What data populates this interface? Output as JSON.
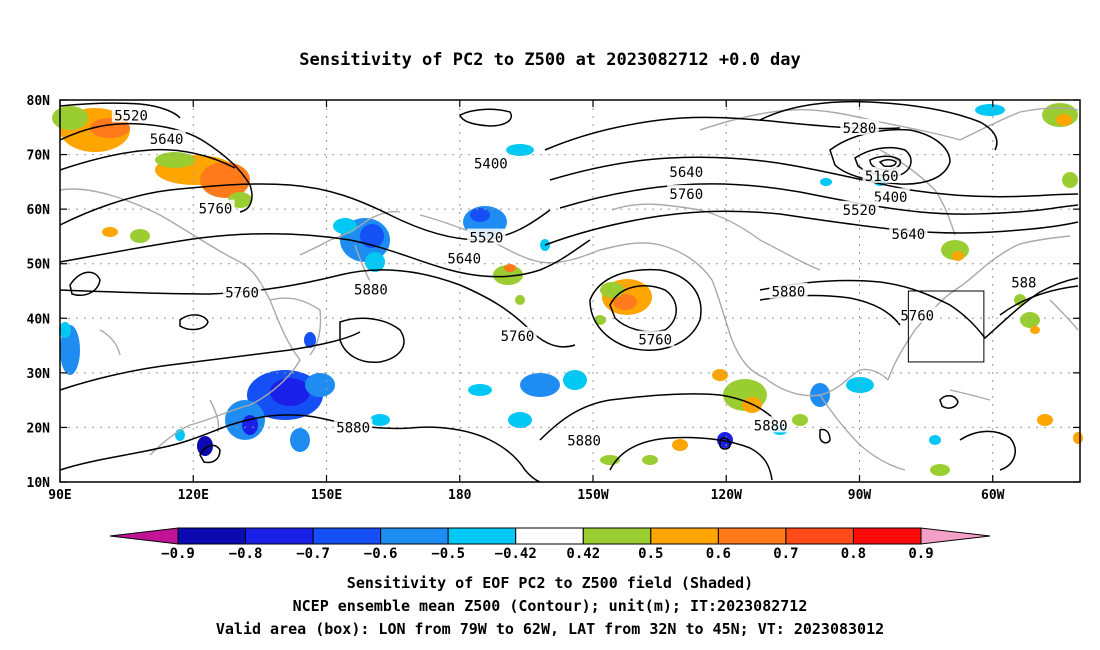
{
  "title": "Sensitivity of PC2 to Z500 at 2023082712 +0.0 day",
  "lat_labels": [
    "80N",
    "70N",
    "60N",
    "50N",
    "40N",
    "30N",
    "20N",
    "10N"
  ],
  "lon_labels": [
    "90E",
    "120E",
    "150E",
    "180",
    "150W",
    "120W",
    "90W",
    "60W"
  ],
  "contour_labels": [
    {
      "text": "5520",
      "lon": 106,
      "lat": 77
    },
    {
      "text": "5640",
      "lon": 114,
      "lat": 72.7
    },
    {
      "text": "5760",
      "lon": 125,
      "lat": 59.9
    },
    {
      "text": "5400",
      "lon": 187,
      "lat": 68.2
    },
    {
      "text": "5640",
      "lon": 231,
      "lat": 66.6
    },
    {
      "text": "5760",
      "lon": 231,
      "lat": 62.6
    },
    {
      "text": "5280",
      "lon": 270,
      "lat": 74.7
    },
    {
      "text": "5160",
      "lon": 275,
      "lat": 65.9
    },
    {
      "text": "5400",
      "lon": 277,
      "lat": 62
    },
    {
      "text": "5520",
      "lon": 270,
      "lat": 59.7
    },
    {
      "text": "5640",
      "lon": 281,
      "lat": 55.3
    },
    {
      "text": "5520",
      "lon": 186,
      "lat": 54.6
    },
    {
      "text": "5640",
      "lon": 181,
      "lat": 50.8
    },
    {
      "text": "5760",
      "lon": 131,
      "lat": 44.5
    },
    {
      "text": "5880",
      "lon": 160,
      "lat": 45.1
    },
    {
      "text": "5760",
      "lon": 193,
      "lat": 36.6
    },
    {
      "text": "5760",
      "lon": 224,
      "lat": 35.9
    },
    {
      "text": "5880",
      "lon": 254,
      "lat": 44.7
    },
    {
      "text": "5760",
      "lon": 283,
      "lat": 40.3
    },
    {
      "text": "5880",
      "lon": 156,
      "lat": 19.8
    },
    {
      "text": "5880",
      "lon": 208,
      "lat": 17.4
    },
    {
      "text": "5880",
      "lon": 250,
      "lat": 20.2
    },
    {
      "text": "588",
      "lon": 307,
      "lat": 46.4
    }
  ],
  "colorbar": {
    "labels": [
      "−0.9",
      "−0.8",
      "−0.7",
      "−0.6",
      "−0.5",
      "−0.42",
      "0.42",
      "0.5",
      "0.6",
      "0.7",
      "0.8",
      "0.9"
    ],
    "colors": [
      "#c21295",
      "#0a0ab0",
      "#1a20e8",
      "#1450f5",
      "#1e8cf0",
      "#00c8f5",
      "#ffffff",
      "#9acd32",
      "#ffa500",
      "#ff7a1a",
      "#ff4a1a",
      "#ff0a0a",
      "#f5a0c8"
    ]
  },
  "captions": [
    "Sensitivity of EOF PC2 to Z500 field (Shaded)",
    "NCEP ensemble mean Z500 (Contour); unit(m); IT:2023082712",
    "Valid area (box): LON from 79W to 62W, LAT from 32N to 45N; VT: 2023083012"
  ],
  "valid_box": {
    "lon_min": -79,
    "lon_max": -62,
    "lat_min": 32,
    "lat_max": 45
  }
}
